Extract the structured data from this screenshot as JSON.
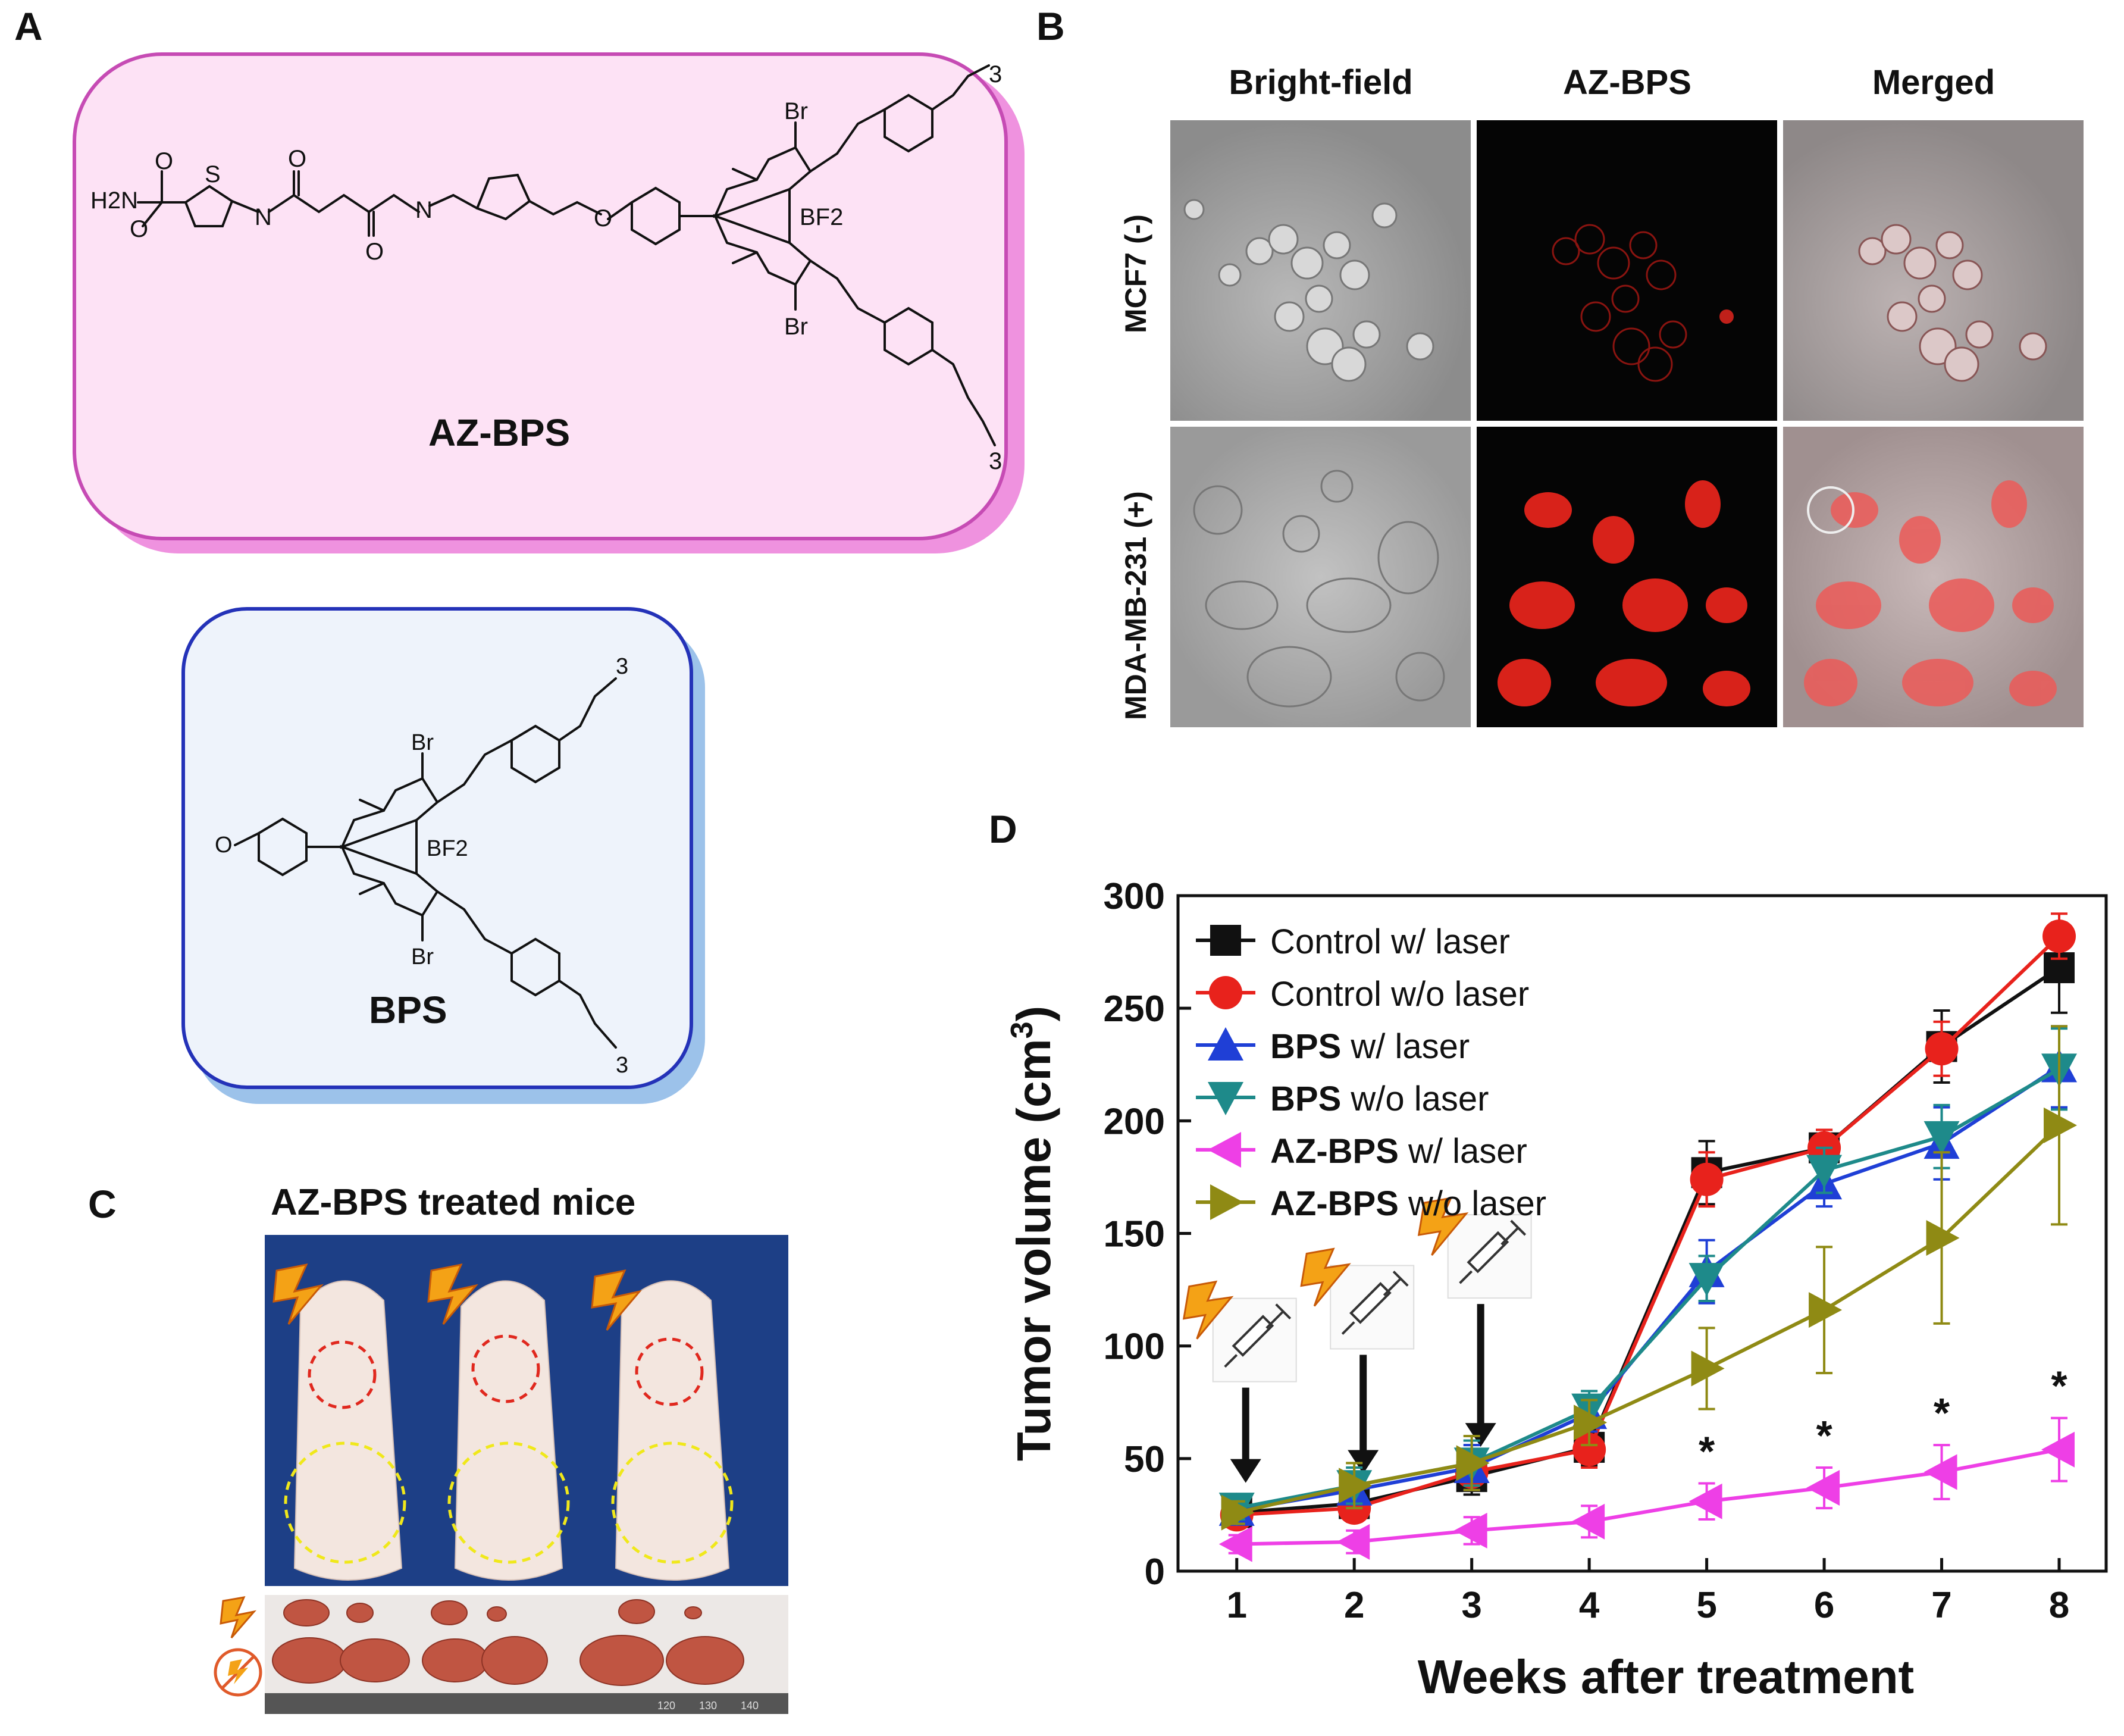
{
  "panels": {
    "a": "A",
    "b": "B",
    "c": "C",
    "d": "D"
  },
  "panelA": {
    "main_compound": "AZ-BPS",
    "ref_compound": "BPS",
    "atoms": {
      "amide_group": "H2N",
      "S": "S",
      "O": "O",
      "N": "N",
      "H": "H",
      "Br": "Br",
      "BF2": "BF2",
      "sub3": "3"
    }
  },
  "panelB": {
    "columns": [
      "Bright-field",
      "AZ-BPS",
      "Merged"
    ],
    "rows": [
      "MCF7 (-)",
      "MDA-MB-231 (+)"
    ]
  },
  "panelC": {
    "title": "AZ-BPS treated mice",
    "ruler": [
      "120",
      "130",
      "140"
    ]
  },
  "chart_data": {
    "type": "line",
    "title": "",
    "xlabel": "Weeks after treatment",
    "ylabel": "Tumor volume (cm3)",
    "ylabel_main": "Tumor volume (cm",
    "ylabel_sup": "3",
    "ylabel_close": ")",
    "x": [
      1,
      2,
      3,
      4,
      5,
      6,
      7,
      8
    ],
    "xticks": [
      "1",
      "2",
      "3",
      "4",
      "5",
      "6",
      "7",
      "8"
    ],
    "yticks": [
      "0",
      "50",
      "100",
      "150",
      "200",
      "250",
      "300"
    ],
    "xlim": [
      0.5,
      8.4
    ],
    "ylim": [
      0,
      300
    ],
    "legend_position": "top-left",
    "series": [
      {
        "name": "Control w/ laser",
        "name_bold": "",
        "name_rest": "Control w/ laser",
        "color": "#111111",
        "marker": "square",
        "values": [
          26,
          30,
          42,
          55,
          177,
          188,
          233,
          268
        ],
        "errors": [
          6,
          6,
          8,
          8,
          14,
          8,
          16,
          20
        ]
      },
      {
        "name": "Control w/o laser",
        "name_bold": "",
        "name_rest": "Control w/o laser",
        "color": "#e8221c",
        "marker": "circle",
        "values": [
          25,
          28,
          44,
          54,
          174,
          188,
          232,
          282
        ],
        "errors": [
          5,
          6,
          8,
          8,
          12,
          8,
          12,
          10
        ]
      },
      {
        "name": "BPS w/ laser",
        "name_bold": "BPS",
        "name_rest": " w/ laser",
        "color": "#1f3fd6",
        "marker": "triangle-up",
        "values": [
          27,
          36,
          46,
          70,
          133,
          172,
          190,
          224
        ],
        "errors": [
          6,
          8,
          10,
          8,
          14,
          10,
          16,
          18
        ]
      },
      {
        "name": "BPS w/o laser",
        "name_bold": "BPS",
        "name_rest": " w/o laser",
        "color": "#1e8a8a",
        "marker": "triangle-down",
        "values": [
          28,
          38,
          48,
          72,
          130,
          178,
          193,
          223
        ],
        "errors": [
          5,
          8,
          10,
          8,
          10,
          10,
          14,
          18
        ]
      },
      {
        "name": "AZ-BPS w/ laser",
        "name_bold": "AZ-BPS",
        "name_rest": " w/ laser",
        "color": "#ee3fe6",
        "marker": "triangle-left",
        "values": [
          12,
          13,
          18,
          22,
          31,
          37,
          44,
          54
        ],
        "errors": [
          4,
          5,
          6,
          7,
          8,
          9,
          12,
          14
        ]
      },
      {
        "name": "AZ-BPS w/o laser",
        "name_bold": "AZ-BPS",
        "name_rest": " w/o laser",
        "color": "#8f8a14",
        "marker": "triangle-right",
        "values": [
          26,
          38,
          48,
          66,
          90,
          116,
          148,
          198
        ],
        "errors": [
          5,
          10,
          12,
          10,
          18,
          28,
          38,
          44
        ]
      }
    ],
    "significance": [
      {
        "x": 5,
        "label": "*"
      },
      {
        "x": 6,
        "label": "*"
      },
      {
        "x": 7,
        "label": "*"
      },
      {
        "x": 8,
        "label": "*"
      }
    ],
    "treatment_weeks": [
      1,
      2,
      3
    ]
  },
  "colors": {
    "az_box_fill": "#fde2f5",
    "az_box_border": "#c64bb4",
    "az_box_shadow": "#ef92df",
    "bps_box_fill": "#eef3fb",
    "bps_box_border": "#2432b8",
    "bps_box_shadow": "#9cc2ea",
    "laser_icon": "#f4a216",
    "tumor_circle_upper": "#e0281e",
    "tumor_circle_lower": "#f0e81a",
    "photo_background": "#1d3f86",
    "fluorescence": "#e2231a"
  }
}
